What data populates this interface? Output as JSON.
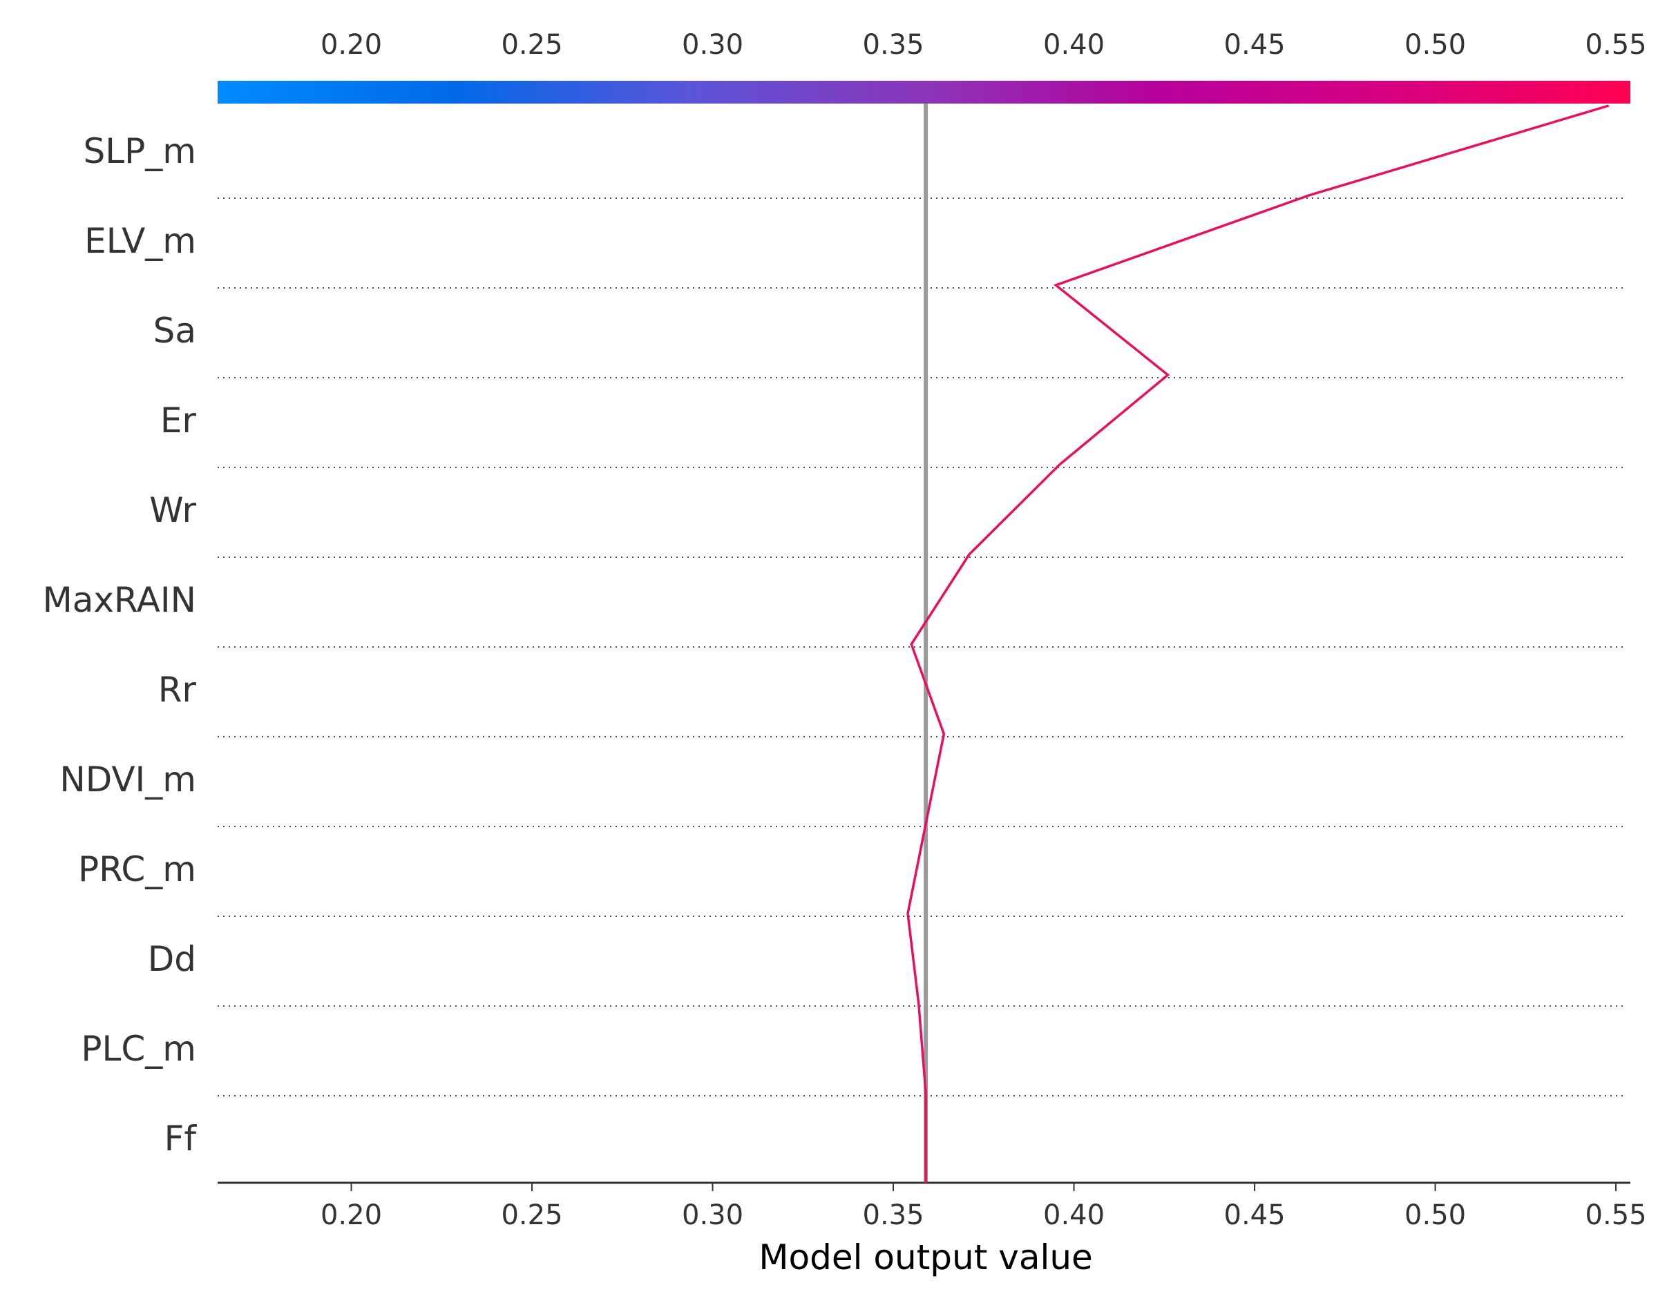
{
  "chart_data": {
    "type": "line",
    "subtype": "shap-decision-plot",
    "xlabel": "Model output value",
    "xlim": [
      0.163,
      0.554
    ],
    "x_ticks": [
      "0.20",
      "0.25",
      "0.30",
      "0.35",
      "0.40",
      "0.45",
      "0.50",
      "0.55"
    ],
    "x_tick_values": [
      0.2,
      0.25,
      0.3,
      0.35,
      0.4,
      0.45,
      0.5,
      0.55
    ],
    "base_value": 0.359,
    "features": [
      "SLP_m",
      "ELV_m",
      "Sa",
      "Er",
      "Wr",
      "MaxRAIN",
      "Rr",
      "NDVI_m",
      "PRC_m",
      "Dd",
      "PLC_m",
      "Ff"
    ],
    "series": [
      {
        "values_bottom_to_top": [
          0.359,
          0.359,
          0.357,
          0.354,
          0.359,
          0.364,
          0.355,
          0.371,
          0.396,
          0.426,
          0.395,
          0.465,
          0.548
        ]
      }
    ],
    "colorbar": {
      "min": 0.163,
      "max": 0.554,
      "colors": [
        "#008bfb",
        "#0069e8",
        "#5b55d8",
        "#8b35b8",
        "#b7009b",
        "#d80080",
        "#ff0052"
      ]
    },
    "line_color": "#ea0f5e",
    "base_line_color": "#999999",
    "grid": "dotted horizontal"
  }
}
